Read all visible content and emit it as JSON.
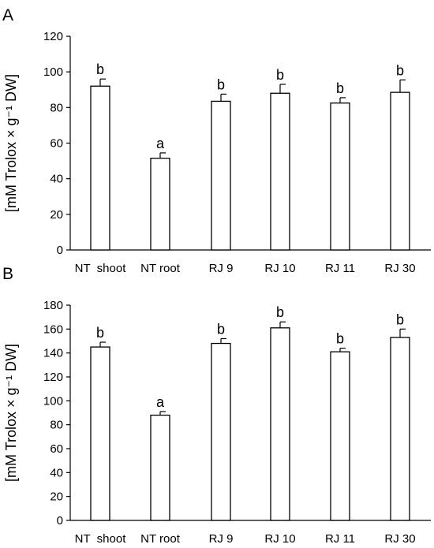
{
  "chart_data": [
    {
      "type": "bar",
      "panel": "A",
      "ylabel": "[mM Trolox × g⁻¹ DW]",
      "ylim": [
        0,
        120
      ],
      "yticks": [
        0,
        20,
        40,
        60,
        80,
        100,
        120
      ],
      "categories": [
        "NT  shoot",
        "NT root",
        "RJ 9",
        "RJ 10",
        "RJ 11",
        "RJ 30"
      ],
      "values": [
        92,
        51.5,
        83.5,
        88,
        82.5,
        88.5
      ],
      "errors": [
        4,
        3,
        4,
        5,
        3,
        7
      ],
      "significance": [
        "b",
        "a",
        "b",
        "b",
        "b",
        "b"
      ],
      "grid": false
    },
    {
      "type": "bar",
      "panel": "B",
      "ylabel": "[mM Trolox × g⁻¹ DW]",
      "ylim": [
        0,
        180
      ],
      "yticks": [
        0,
        20,
        40,
        60,
        80,
        100,
        120,
        140,
        160,
        180
      ],
      "categories": [
        "NT  shoot",
        "NT root",
        "RJ 9",
        "RJ 10",
        "RJ 11",
        "RJ 30"
      ],
      "values": [
        145,
        88,
        148,
        161,
        141,
        153
      ],
      "errors": [
        4,
        3,
        4,
        5,
        3,
        7
      ],
      "significance": [
        "b",
        "a",
        "b",
        "b",
        "b",
        "b"
      ],
      "grid": false
    }
  ]
}
